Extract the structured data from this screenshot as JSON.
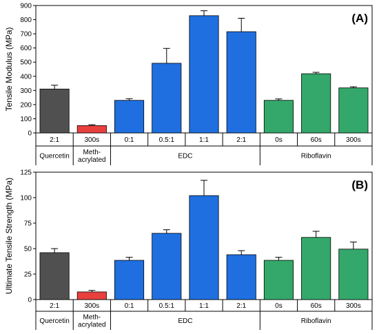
{
  "chart_data": [
    {
      "type": "bar",
      "panel_label": "(A)",
      "ylabel": "Tensile Modulus (MPa)",
      "ylim": [
        0,
        900
      ],
      "yticks": [
        0,
        100,
        200,
        300,
        400,
        500,
        600,
        700,
        800,
        900
      ],
      "categories": [
        "2:1",
        "300s",
        "0:1",
        "0.5:1",
        "1:1",
        "2:1",
        "0s",
        "60s",
        "300s"
      ],
      "values": [
        310,
        52,
        230,
        492,
        828,
        715,
        230,
        418,
        318
      ],
      "errors": [
        27,
        6,
        12,
        105,
        35,
        95,
        10,
        10,
        8
      ],
      "groups": [
        {
          "label": "Quercetin",
          "span": [
            0,
            0
          ]
        },
        {
          "label": "Meth-\nacrylated",
          "span": [
            1,
            1
          ]
        },
        {
          "label": "EDC",
          "span": [
            2,
            5
          ]
        },
        {
          "label": "Riboflavin",
          "span": [
            6,
            8
          ]
        }
      ],
      "colors": [
        "#505050",
        "#e8403f",
        "#1f6fe0",
        "#1f6fe0",
        "#1f6fe0",
        "#1f6fe0",
        "#33a86a",
        "#33a86a",
        "#33a86a"
      ]
    },
    {
      "type": "bar",
      "panel_label": "(B)",
      "ylabel": "Ultimate Tensile Strength (MPa)",
      "ylim": [
        0,
        125
      ],
      "yticks": [
        0,
        25,
        50,
        75,
        100,
        125
      ],
      "categories": [
        "2:1",
        "300s",
        "0:1",
        "0.5:1",
        "1:1",
        "2:1",
        "0s",
        "60s",
        "300s"
      ],
      "values": [
        46,
        7.5,
        38.5,
        65,
        102,
        44,
        38.5,
        61,
        49.5
      ],
      "errors": [
        4,
        1.5,
        3,
        3.5,
        15,
        4,
        3,
        6,
        7
      ],
      "groups": [
        {
          "label": "Quercetin",
          "span": [
            0,
            0
          ]
        },
        {
          "label": "Meth-\nacrylated",
          "span": [
            1,
            1
          ]
        },
        {
          "label": "EDC",
          "span": [
            2,
            5
          ]
        },
        {
          "label": "Riboflavin",
          "span": [
            6,
            8
          ]
        }
      ],
      "colors": [
        "#505050",
        "#e8403f",
        "#1f6fe0",
        "#1f6fe0",
        "#1f6fe0",
        "#1f6fe0",
        "#33a86a",
        "#33a86a",
        "#33a86a"
      ]
    }
  ]
}
